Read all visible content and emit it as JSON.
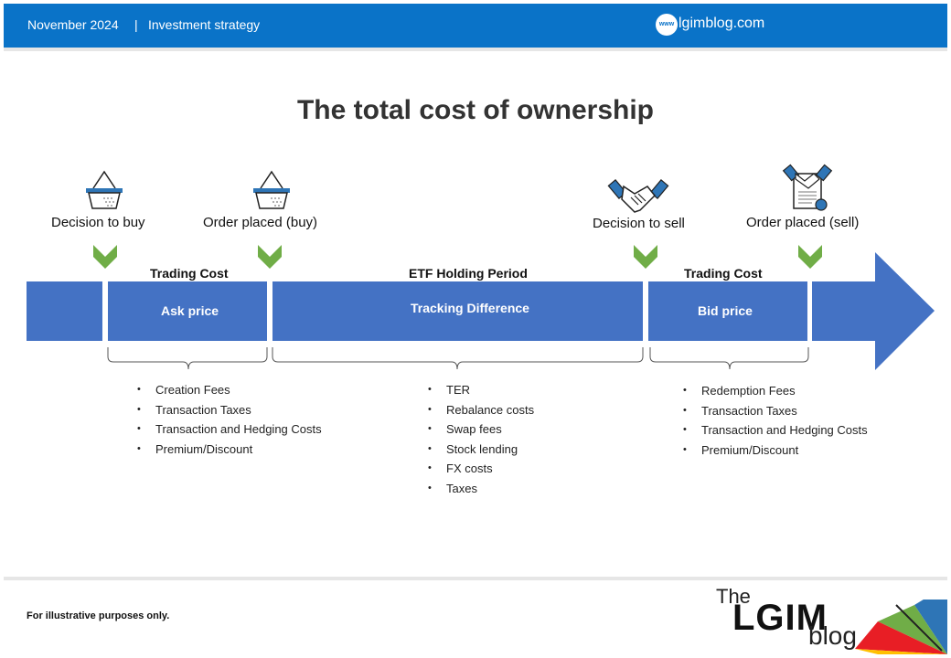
{
  "header": {
    "date": "November 2024",
    "separator": "|",
    "category": "Investment strategy",
    "site": "lgimblog.com",
    "www_badge": "www"
  },
  "title": "The total cost of ownership",
  "steps": [
    {
      "label": "Decision to buy",
      "icon": "basket-icon"
    },
    {
      "label": "Order placed (buy)",
      "icon": "basket-icon"
    },
    {
      "label": "Decision to sell",
      "icon": "handshake-icon"
    },
    {
      "label": "Order placed (sell)",
      "icon": "contract-icon"
    }
  ],
  "sections": [
    {
      "heading": "Trading Cost",
      "bar_label": "Ask price",
      "bullets": [
        "Creation Fees",
        "Transaction Taxes",
        "Transaction and Hedging Costs",
        "Premium/Discount"
      ]
    },
    {
      "heading": "ETF Holding Period",
      "bar_label": "Tracking Difference",
      "bullets": [
        "TER",
        "Rebalance costs",
        "Swap fees",
        "Stock lending",
        "FX costs",
        "Taxes"
      ]
    },
    {
      "heading": "Trading Cost",
      "bar_label": "Bid price",
      "bullets": [
        "Redemption Fees",
        "Transaction Taxes",
        "Transaction and Hedging Costs",
        "Premium/Discount"
      ]
    }
  ],
  "footer": {
    "note": "For illustrative purposes only."
  },
  "logo": {
    "the": "The",
    "brand": "LGIM",
    "blog": "blog"
  },
  "colors": {
    "header_blue": "#0a73c8",
    "bar_blue": "#4472c4",
    "check_green": "#70ad47",
    "icon_blue": "#2e75b6"
  }
}
